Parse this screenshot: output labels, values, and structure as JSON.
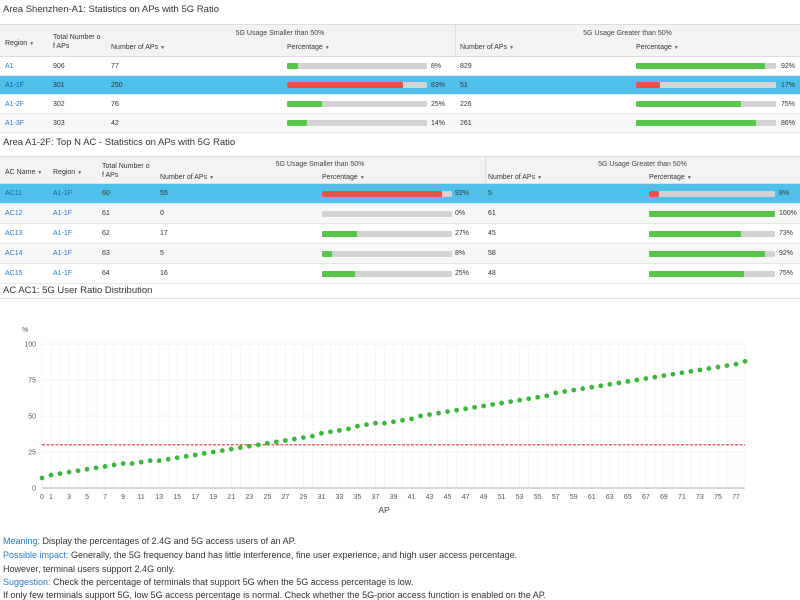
{
  "colors": {
    "green": "#57c64b",
    "red": "#e8534a",
    "selected": "#4fc0ea",
    "link": "#3379c8",
    "threshold": "#e03c31",
    "point": "#3bb53b"
  },
  "section1": {
    "title": "Area Shenzhen-A1: Statistics on APs with 5G Ratio",
    "group_smaller": "5G Usage Smaller than 50%",
    "group_greater": "5G Usage Greater than 50%",
    "col_region": "Region",
    "col_total_1": "Total Number o",
    "col_total_2": "f APs",
    "col_num": "Number of APs",
    "col_pct": "Percentage",
    "col_num2": "Number of APs",
    "col_pct2": "Percentage",
    "rows": [
      {
        "name": "A1",
        "total": "906",
        "s_num": "77",
        "s_pct": 8,
        "s_label": "8%",
        "g_num": "829",
        "g_pct": 92,
        "g_label": "92%",
        "selected": false
      },
      {
        "name": "A1-1F",
        "total": "301",
        "s_num": "250",
        "s_pct": 83,
        "s_label": "83%",
        "g_num": "51",
        "g_pct": 17,
        "g_label": "17%",
        "selected": true
      },
      {
        "name": "A1-2F",
        "total": "302",
        "s_num": "76",
        "s_pct": 25,
        "s_label": "25%",
        "g_num": "226",
        "g_pct": 75,
        "g_label": "75%",
        "selected": false
      },
      {
        "name": "A1-3F",
        "total": "303",
        "s_num": "42",
        "s_pct": 14,
        "s_label": "14%",
        "g_num": "261",
        "g_pct": 86,
        "g_label": "86%",
        "selected": false
      }
    ]
  },
  "section2": {
    "title": "Area A1-2F: Top N AC - Statistics on APs with 5G Ratio",
    "group_smaller": "5G Usage Smaller than 50%",
    "group_greater": "5G Usage Greater than 50%",
    "col_acname": "AC Name",
    "col_region": "Region",
    "col_total_1": "Total Number o",
    "col_total_2": "f APs",
    "col_num": "Number of APs",
    "col_pct": "Percentage",
    "col_num2": "Number of APs",
    "col_pct2": "Percentage",
    "rows": [
      {
        "name": "AC11",
        "region": "A1-1F",
        "total": "60",
        "s_num": "55",
        "s_pct": 92,
        "s_label": "92%",
        "g_num": "5",
        "g_pct": 8,
        "g_label": "8%",
        "selected": true
      },
      {
        "name": "AC12",
        "region": "A1-1F",
        "total": "61",
        "s_num": "0",
        "s_pct": 0,
        "s_label": "0%",
        "g_num": "61",
        "g_pct": 100,
        "g_label": "100%",
        "selected": false
      },
      {
        "name": "AC13",
        "region": "A1-1F",
        "total": "62",
        "s_num": "17",
        "s_pct": 27,
        "s_label": "27%",
        "g_num": "45",
        "g_pct": 73,
        "g_label": "73%",
        "selected": false
      },
      {
        "name": "AC14",
        "region": "A1-1F",
        "total": "63",
        "s_num": "5",
        "s_pct": 8,
        "s_label": "8%",
        "g_num": "58",
        "g_pct": 92,
        "g_label": "92%",
        "selected": false
      },
      {
        "name": "AC15",
        "region": "A1-1F",
        "total": "64",
        "s_num": "16",
        "s_pct": 25,
        "s_label": "25%",
        "g_num": "48",
        "g_pct": 75,
        "g_label": "75%",
        "selected": false
      }
    ]
  },
  "section3": {
    "title": "AC AC1: 5G User Ratio Distribution"
  },
  "chart_data": {
    "type": "scatter",
    "ylabel": "%",
    "xlabel": "AP",
    "ylim": [
      0,
      100
    ],
    "yticks": [
      0,
      25,
      50,
      75,
      100
    ],
    "xlim": [
      0,
      78
    ],
    "xticks": [
      "0",
      "1",
      "3",
      "5",
      "7",
      "9",
      "11",
      "13",
      "15",
      "17",
      "19",
      "21",
      "23",
      "25",
      "27",
      "29",
      "31",
      "33",
      "35",
      "37",
      "39",
      "41",
      "43",
      "45",
      "47",
      "49",
      "51",
      "53",
      "55",
      "57",
      "59",
      "61",
      "63",
      "65",
      "67",
      "69",
      "71",
      "73",
      "75",
      "77"
    ],
    "threshold": 30,
    "grid": true,
    "x": [
      0,
      1,
      2,
      3,
      4,
      5,
      6,
      7,
      8,
      9,
      10,
      11,
      12,
      13,
      14,
      15,
      16,
      17,
      18,
      19,
      20,
      21,
      22,
      23,
      24,
      25,
      26,
      27,
      28,
      29,
      30,
      31,
      32,
      33,
      34,
      35,
      36,
      37,
      38,
      39,
      40,
      41,
      42,
      43,
      44,
      45,
      46,
      47,
      48,
      49,
      50,
      51,
      52,
      53,
      54,
      55,
      56,
      57,
      58,
      59,
      60,
      61,
      62,
      63,
      64,
      65,
      66,
      67,
      68,
      69,
      70,
      71,
      72,
      73,
      74,
      75,
      76,
      77,
      78
    ],
    "y": [
      7,
      9,
      10,
      11,
      12,
      13,
      14,
      15,
      16,
      17,
      17,
      18,
      19,
      19,
      20,
      21,
      22,
      23,
      24,
      25,
      26,
      27,
      28,
      29,
      30,
      31,
      32,
      33,
      34,
      35,
      36,
      38,
      39,
      40,
      41,
      43,
      44,
      45,
      45,
      46,
      47,
      48,
      50,
      51,
      52,
      53,
      54,
      55,
      56,
      57,
      58,
      59,
      60,
      61,
      62,
      63,
      64,
      66,
      67,
      68,
      69,
      70,
      71,
      72,
      73,
      74,
      75,
      76,
      77,
      78,
      79,
      80,
      81,
      82,
      83,
      84,
      85,
      86,
      88
    ]
  },
  "notes": {
    "meaning_key": "Meaning:",
    "meaning_text": " Display the percentages of 2.4G and 5G access users of an AP.",
    "impact_key": "Possible impact:",
    "impact_text": " Generally, the 5G frequency band has little interference, fine user experience, and high user access percentage.",
    "impact_line2": "However, terminal users support 2.4G only.",
    "suggestion_key": "Suggestion:",
    "suggestion_text": " Check the percentage of terminals that support 5G when the 5G access percentage is low.",
    "suggestion_line2": "If only few terminals support 5G, low 5G access percentage is normal. Check whether the 5G-prior access function is enabled on the AP."
  }
}
